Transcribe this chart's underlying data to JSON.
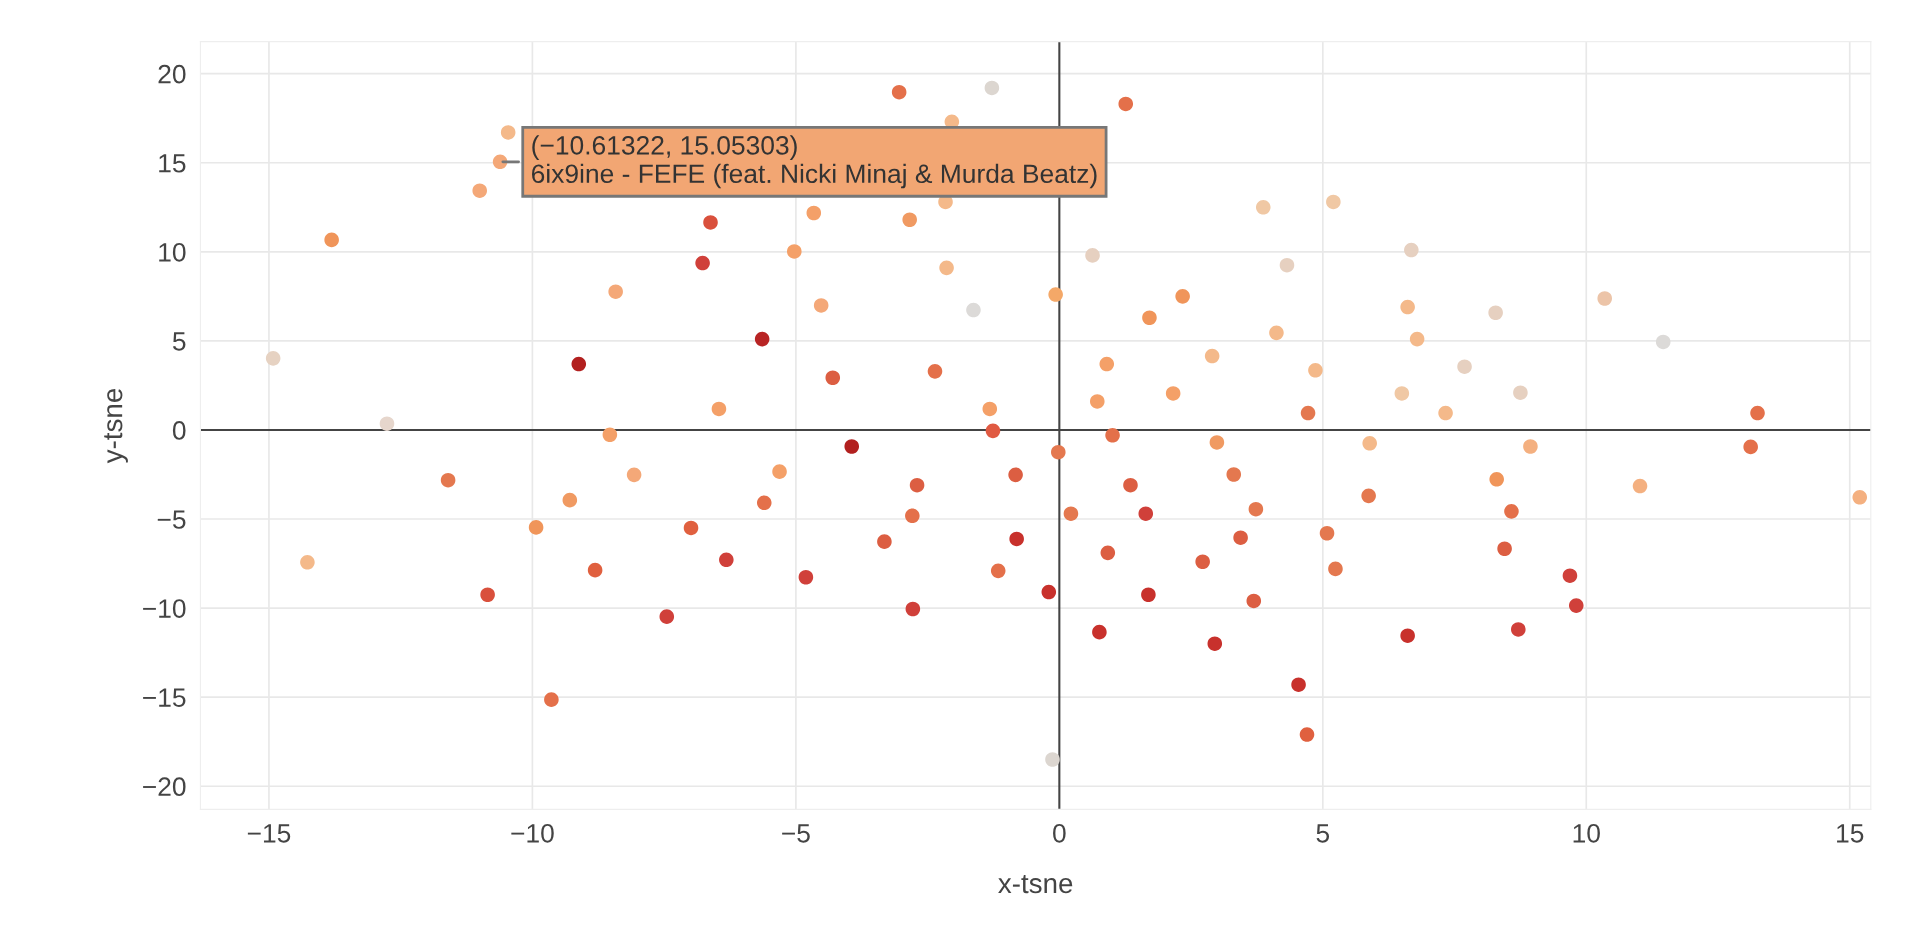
{
  "chart_data": {
    "type": "scatter",
    "xlabel": "x-tsne",
    "ylabel": "y-tsne",
    "xlim": [
      -16.3,
      15.4
    ],
    "ylim": [
      -21.3,
      21.8
    ],
    "xticks": [
      -15,
      -10,
      -5,
      0,
      5,
      10,
      15
    ],
    "yticks": [
      -20,
      -15,
      -10,
      -5,
      0,
      5,
      10,
      15,
      20
    ],
    "grid": true,
    "marker": "circle",
    "annotations": [
      {
        "text": "(−10.61322, 15.05303)\n6ix9ine - FEFE (feat. Nicki Minaj & Murda Beatz)",
        "x": -10.61322,
        "y": 15.05303
      }
    ],
    "x": [
      -14.92,
      -13.81,
      -12.76,
      -14.27,
      -11.6,
      -10.85,
      -11.0,
      -10.61322,
      -10.46,
      -9.12,
      -8.42,
      -8.53,
      -8.07,
      -9.29,
      -9.93,
      -8.81,
      -9.64,
      -6.62,
      -6.77,
      -5.64,
      -6.46,
      -4.3,
      -5.03,
      -4.52,
      -4.66,
      -3.04,
      -2.84,
      -2.14,
      -2.04,
      -2.16,
      -1.63,
      -1.28,
      -2.36,
      -1.32,
      -1.26,
      -3.94,
      -5.31,
      -5.6,
      -6.99,
      -6.32,
      -4.81,
      -7.45,
      -3.32,
      -2.7,
      -2.79,
      -2.78,
      -1.16,
      -0.83,
      -0.81,
      -0.2,
      -0.13,
      -0.02,
      -0.07,
      0.63,
      0.9,
      0.72,
      1.01,
      0.22,
      0.92,
      0.76,
      1.26,
      1.71,
      1.35,
      1.64,
      1.69,
      2.34,
      2.16,
      2.9,
      2.99,
      3.31,
      2.72,
      2.95,
      3.44,
      3.73,
      3.69,
      3.87,
      4.12,
      4.32,
      4.86,
      5.2,
      4.72,
      5.08,
      5.24,
      4.54,
      4.7,
      5.89,
      5.87,
      6.68,
      6.61,
      6.79,
      6.5,
      7.33,
      7.69,
      6.61,
      13.25,
      8.94,
      13.12,
      8.3,
      11.02,
      15.19,
      8.58,
      8.45,
      9.69,
      9.81,
      8.71,
      10.35,
      8.28,
      11.46,
      8.75
    ],
    "values": [
      4.02,
      10.67,
      0.35,
      -7.43,
      -2.82,
      -9.25,
      13.43,
      15.05303,
      16.7,
      3.7,
      7.76,
      -0.27,
      -2.52,
      -3.94,
      -5.47,
      -7.87,
      -15.14,
      11.65,
      9.37,
      5.1,
      1.18,
      2.93,
      10.02,
      6.99,
      12.18,
      18.96,
      11.8,
      9.1,
      17.3,
      12.8,
      6.73,
      19.2,
      3.29,
      1.18,
      -0.05,
      -0.93,
      -2.34,
      -4.09,
      -5.5,
      -7.29,
      -8.27,
      -10.48,
      -6.27,
      -3.1,
      -4.82,
      -10.05,
      -7.91,
      -2.52,
      -6.12,
      -9.1,
      -18.5,
      -1.25,
      7.6,
      9.8,
      3.7,
      1.6,
      -0.3,
      -4.7,
      -6.9,
      -11.35,
      18.3,
      6.3,
      -3.1,
      -4.7,
      -9.25,
      7.5,
      2.05,
      4.15,
      -0.7,
      -2.5,
      -7.4,
      -12.0,
      -6.05,
      -4.45,
      -9.6,
      12.5,
      5.45,
      9.25,
      3.35,
      12.8,
      0.95,
      -5.8,
      -7.8,
      -14.3,
      -17.1,
      -0.75,
      -3.7,
      10.1,
      6.9,
      5.1,
      2.05,
      0.95,
      3.55,
      -11.55,
      0.95,
      -0.93,
      -0.95,
      -2.77,
      -3.15,
      -3.78,
      -4.57,
      -6.67,
      -8.18,
      -9.86,
      -11.2,
      7.38,
      6.58,
      4.94,
      2.09
    ],
    "colors": [
      "#e6d2c2",
      "#f0955a",
      "#e6d6cc",
      "#f4b98a",
      "#e4784f",
      "#d9503c",
      "#f4a878",
      "#f4a878",
      "#f4b98a",
      "#b2201f",
      "#f4a878",
      "#f4a068",
      "#f4a878",
      "#f09a62",
      "#f0955a",
      "#e0603f",
      "#e4704a",
      "#d9503c",
      "#d0403a",
      "#b82424",
      "#f4a068",
      "#dc5e42",
      "#f4a068",
      "#f4a878",
      "#f4a068",
      "#e4704a",
      "#f09a62",
      "#f4b98a",
      "#f4b98a",
      "#f4b98a",
      "#dcdad8",
      "#dcd6d0",
      "#e4704a",
      "#f4a068",
      "#e05a42",
      "#b2201f",
      "#f4a068",
      "#e4704a",
      "#e0603f",
      "#d0403a",
      "#d0403a",
      "#d0403a",
      "#dc5e42",
      "#dc5e42",
      "#e4704a",
      "#d0403a",
      "#e4704a",
      "#dc5e42",
      "#c8312c",
      "#c8312c",
      "#dcd6d0",
      "#e4784f",
      "#f4a868",
      "#e6d0c0",
      "#f4a068",
      "#f4a068",
      "#e4704a",
      "#e4784f",
      "#dc5e42",
      "#c8312c",
      "#e4704a",
      "#f0955a",
      "#dc5e42",
      "#d0403a",
      "#c8312c",
      "#f0955a",
      "#f4a068",
      "#f4b98a",
      "#f09a62",
      "#e4784f",
      "#dc5e42",
      "#c8312c",
      "#dc5e42",
      "#e4784f",
      "#dc5e42",
      "#f0c8a4",
      "#f4b98a",
      "#e6d0c0",
      "#f4b98a",
      "#f0c8a4",
      "#e4784f",
      "#e4784f",
      "#e4784f",
      "#c8312c",
      "#e0603f",
      "#f4b98a",
      "#e4784f",
      "#e6d0c0",
      "#f4b98a",
      "#f4b98a",
      "#f0c8a4",
      "#f4b98a",
      "#e6d0c0",
      "#c8312c",
      "#e4704a",
      "#f4b080",
      "#e4704a",
      "#f0955a",
      "#f4b080",
      "#f4b080",
      "#e4704a",
      "#dc5e42",
      "#d0403a",
      "#d0403a",
      "#d0403a",
      "#ecc4a8",
      "#e6d0c0",
      "#dcdad8",
      "#e6d0c0"
    ]
  }
}
